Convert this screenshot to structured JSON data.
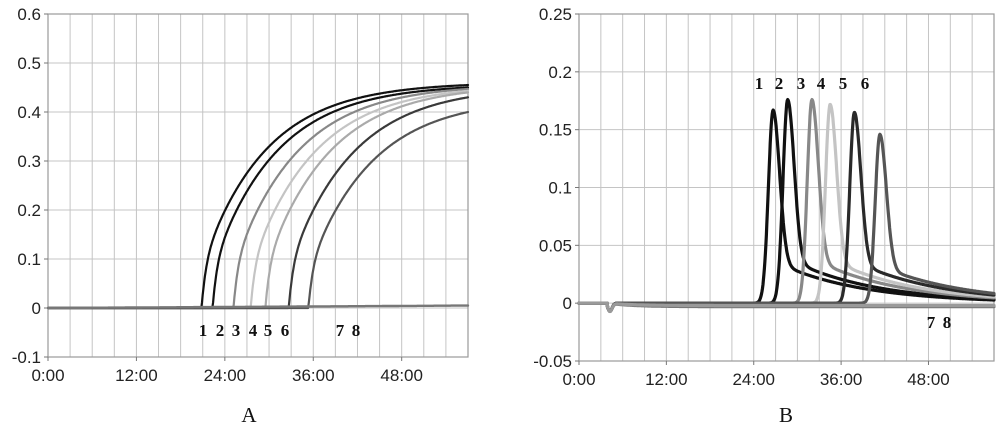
{
  "chart_data": [
    {
      "type": "line",
      "caption": "A",
      "xlabel": "",
      "ylabel": "",
      "x_ticks": [
        "0:00",
        "12:00",
        "24:00",
        "36:00",
        "48:00"
      ],
      "y_ticks": [
        "0.6",
        "0.5",
        "0.4",
        "0.3",
        "0.2",
        "0.1",
        "0",
        "-0.1"
      ],
      "xlim": [
        "0:00",
        "57:00"
      ],
      "ylim": [
        -0.1,
        0.6
      ],
      "grid": true,
      "curve_labels": [
        "1",
        "2",
        "3",
        "4",
        "5",
        "6",
        "7",
        "8"
      ],
      "series": [
        {
          "color": "#111111",
          "onset_time_min": 1250,
          "final_value": 0.455
        },
        {
          "color": "#111111",
          "onset_time_min": 1340,
          "final_value": 0.45
        },
        {
          "color": "#888888",
          "onset_time_min": 1510,
          "final_value": 0.447
        },
        {
          "color": "#c4c4c4",
          "onset_time_min": 1650,
          "final_value": 0.443
        },
        {
          "color": "#aaaaaa",
          "onset_time_min": 1770,
          "final_value": 0.44
        },
        {
          "color": "#3a3a3a",
          "onset_time_min": 1960,
          "final_value": 0.43
        },
        {
          "color": "#555555",
          "onset_time_min": 2120,
          "final_value": 0.4
        },
        {
          "color": "#777777",
          "flat_value": 0.005
        }
      ]
    },
    {
      "type": "line",
      "caption": "B",
      "xlabel": "",
      "ylabel": "",
      "x_ticks": [
        "0:00",
        "12:00",
        "24:00",
        "36:00",
        "48:00"
      ],
      "y_ticks": [
        "0.25",
        "0.2",
        "0.15",
        "0.1",
        "0.05",
        "0",
        "-0.05"
      ],
      "xlim": [
        "0:00",
        "57:00"
      ],
      "ylim": [
        -0.05,
        0.25
      ],
      "grid": true,
      "curve_labels_top": [
        "1",
        "2",
        "3",
        "4",
        "5",
        "6"
      ],
      "curve_labels_bottom": [
        "7",
        "8"
      ],
      "series": [
        {
          "color": "#111111",
          "peak_time_min": 1600,
          "peak_value": 0.167
        },
        {
          "color": "#111111",
          "peak_time_min": 1720,
          "peak_value": 0.176
        },
        {
          "color": "#888888",
          "peak_time_min": 1920,
          "peak_value": 0.176
        },
        {
          "color": "#c4c4c4",
          "peak_time_min": 2070,
          "peak_value": 0.172
        },
        {
          "color": "#2a2a2a",
          "peak_time_min": 2270,
          "peak_value": 0.165
        },
        {
          "color": "#555555",
          "peak_time_min": 2480,
          "peak_value": 0.146
        },
        {
          "color": "#777777",
          "flat_value": -0.003
        },
        {
          "color": "#9a9a9a",
          "flat_value": -0.002
        }
      ]
    }
  ]
}
